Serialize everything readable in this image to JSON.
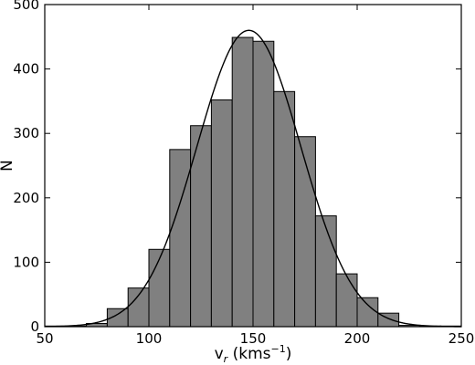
{
  "chart_data": {
    "type": "bar",
    "subtype": "histogram",
    "xlabel": {
      "base": "v",
      "sub": "r",
      "unit_prefix": " (kms",
      "unit_exp": "−1",
      "unit_suffix": ")"
    },
    "ylabel": "N",
    "xlim": [
      50,
      250
    ],
    "ylim": [
      0,
      500
    ],
    "xticks": [
      50,
      100,
      150,
      200,
      250
    ],
    "yticks": [
      0,
      100,
      200,
      300,
      400,
      500
    ],
    "bin_width": 10,
    "bins": [
      {
        "x0": 50,
        "x1": 60,
        "count": 1
      },
      {
        "x0": 60,
        "x1": 70,
        "count": 1
      },
      {
        "x0": 70,
        "x1": 80,
        "count": 5
      },
      {
        "x0": 80,
        "x1": 90,
        "count": 28
      },
      {
        "x0": 90,
        "x1": 100,
        "count": 60
      },
      {
        "x0": 100,
        "x1": 110,
        "count": 120
      },
      {
        "x0": 110,
        "x1": 120,
        "count": 275
      },
      {
        "x0": 120,
        "x1": 130,
        "count": 312
      },
      {
        "x0": 130,
        "x1": 140,
        "count": 352
      },
      {
        "x0": 140,
        "x1": 150,
        "count": 449
      },
      {
        "x0": 150,
        "x1": 160,
        "count": 443
      },
      {
        "x0": 160,
        "x1": 170,
        "count": 365
      },
      {
        "x0": 170,
        "x1": 180,
        "count": 295
      },
      {
        "x0": 180,
        "x1": 190,
        "count": 172
      },
      {
        "x0": 190,
        "x1": 200,
        "count": 82
      },
      {
        "x0": 200,
        "x1": 210,
        "count": 45
      },
      {
        "x0": 210,
        "x1": 220,
        "count": 21
      },
      {
        "x0": 220,
        "x1": 230,
        "count": 2
      },
      {
        "x0": 230,
        "x1": 240,
        "count": 1
      },
      {
        "x0": 240,
        "x1": 250,
        "count": 1
      }
    ],
    "gaussian_fit": {
      "mean": 148,
      "sigma": 25,
      "amplitude": 460
    },
    "colors": {
      "bar_fill": "#808080",
      "bar_edge": "#000000",
      "curve": "#000000"
    },
    "grid": false,
    "legend": "none"
  }
}
